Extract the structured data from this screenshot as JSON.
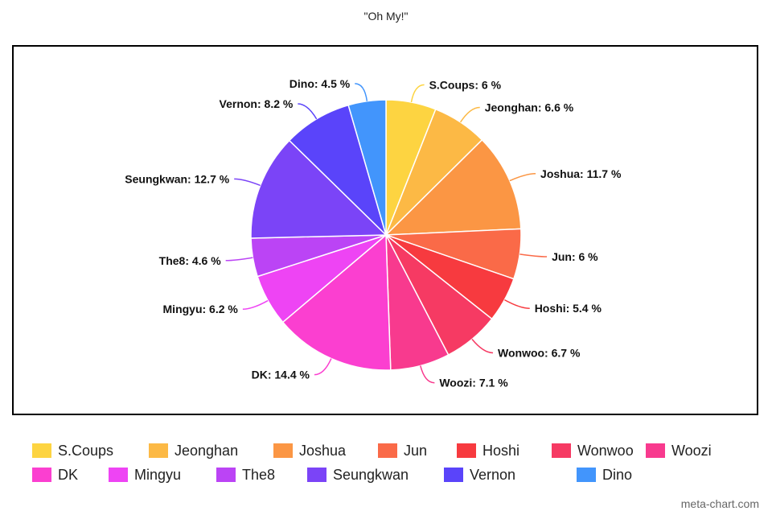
{
  "title": "\"Oh My!\"",
  "watermark": "meta-chart.com",
  "chart_data": {
    "type": "pie",
    "title": "\"Oh My!\"",
    "unit": "%",
    "categories": [
      "S.Coups",
      "Jeonghan",
      "Joshua",
      "Jun",
      "Hoshi",
      "Wonwoo",
      "Woozi",
      "DK",
      "Mingyu",
      "The8",
      "Seungkwan",
      "Vernon",
      "Dino"
    ],
    "values": [
      6,
      6.6,
      11.7,
      6,
      5.4,
      6.7,
      7.1,
      14.4,
      6.2,
      4.6,
      12.7,
      8.2,
      4.5
    ],
    "colors": [
      "#fdd441",
      "#fcb945",
      "#fb9644",
      "#fa6a48",
      "#f73a3f",
      "#f63a63",
      "#f83a8e",
      "#fb3fd0",
      "#ee44f4",
      "#bb44f5",
      "#7b44f7",
      "#5a44fa",
      "#4295fc"
    ],
    "slice_labels": [
      "S.Coups: 6 %",
      "Jeonghan: 6.6 %",
      "Joshua: 11.7 %",
      "Jun: 6 %",
      "Hoshi: 5.4 %",
      "Wonwoo: 6.7 %",
      "Woozi: 7.1 %",
      "DK: 14.4 %",
      "Mingyu: 6.2 %",
      "The8: 4.6 %",
      "Seungkwan: 12.7 %",
      "Vernon: 8.2 %",
      "Dino: 4.5 %"
    ],
    "legend_position": "bottom"
  }
}
